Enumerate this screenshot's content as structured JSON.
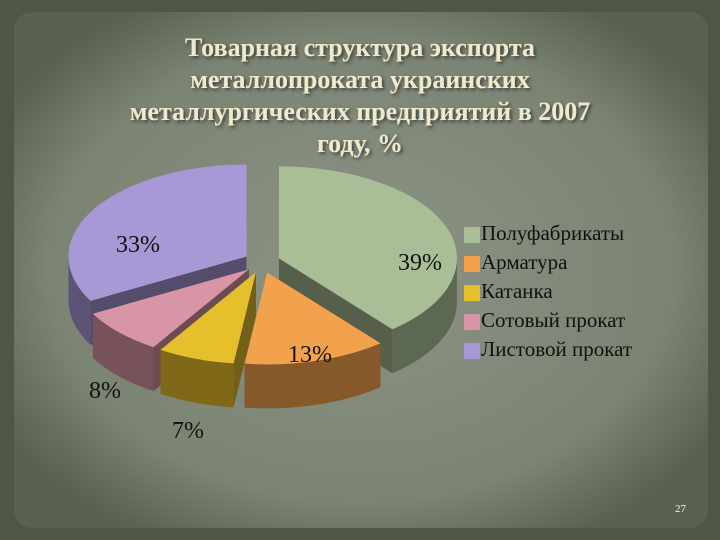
{
  "chart_data": {
    "type": "pie3d",
    "title": "Товарная структура экспорта металлопроката украинских металлургических предприятий в 2007 году, %",
    "categories": [
      "Полуфабрикаты",
      "Арматура",
      "Катанка",
      "Сотовый прокат",
      "Листовой прокат"
    ],
    "values": [
      39,
      13,
      7,
      8,
      33
    ],
    "value_labels": [
      "39%",
      "13%",
      "7%",
      "8%",
      "33%"
    ],
    "colors": [
      "#a9bd96",
      "#f2a24c",
      "#e6bf2c",
      "#d895a6",
      "#a898d6"
    ],
    "legend": "right"
  },
  "slide_number": "27"
}
